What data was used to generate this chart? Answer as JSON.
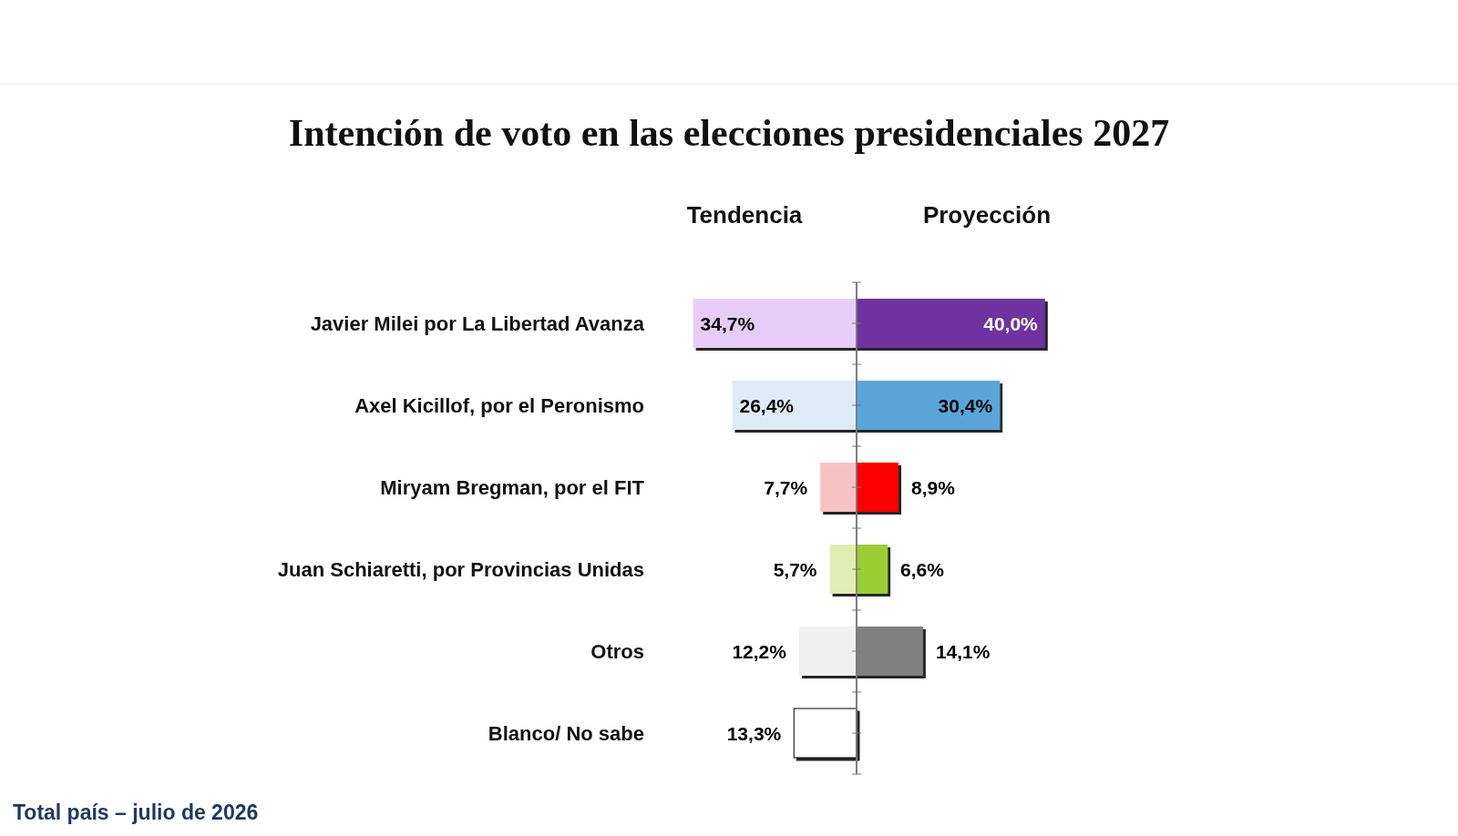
{
  "chart_data": [
    {
      "type": "bar",
      "orientation": "horizontal",
      "title": "Intención de voto en las elecciones presidenciales 2027",
      "subtitle": "Tendencia",
      "categories": [
        "Javier Milei por La Libertad Avanza",
        "Axel Kicillof, por el Peronismo",
        "Miryam Bregman, por el FIT",
        "Juan Schiaretti, por Provincias Unidas",
        "Otros",
        "Blanco/ No sabe"
      ],
      "values": [
        34.7,
        26.4,
        7.7,
        5.7,
        12.2,
        13.3
      ],
      "colors": [
        "#e6cdf8",
        "#dcebf5",
        "#f9c3c3",
        "#e1edb3",
        "#f0f0f0",
        "#ffffff"
      ],
      "value_labels": [
        "34,7%",
        "26,4%",
        "7,7%",
        "5,7%",
        "12,2%",
        "13,3%"
      ],
      "xlim": [
        34.7,
        0
      ],
      "annotations": [
        "Total país – julio de 2026"
      ]
    },
    {
      "type": "bar",
      "orientation": "horizontal",
      "subtitle": "Proyección",
      "categories": [
        null,
        null,
        null,
        null,
        null,
        null
      ],
      "values": [
        40.0,
        30.4,
        8.9,
        6.6,
        14.1,
        null
      ],
      "colors": [
        "#7030a0",
        "#5aa5d8",
        "#ff0000",
        "#9acd32",
        "#808080",
        null
      ],
      "value_labels": [
        "40,0%",
        "30,4%",
        "8,9%",
        "6,6%",
        "14,1%",
        null
      ],
      "xlim": [
        0,
        40
      ]
    }
  ]
}
